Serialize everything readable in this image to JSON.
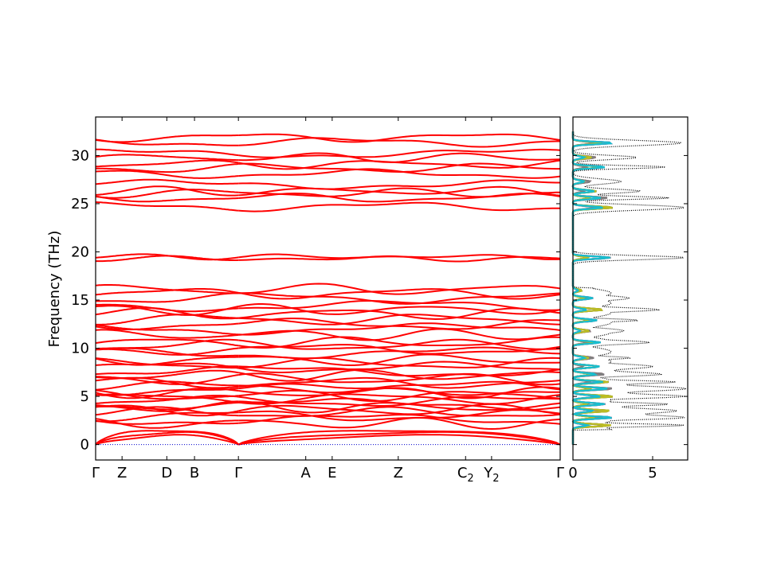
{
  "chart_data": [
    {
      "type": "line",
      "title": "",
      "xlabel": "",
      "ylabel": "Frequency (THz)",
      "ylim": [
        -1.6,
        34
      ],
      "yticks": [
        0,
        5,
        10,
        15,
        20,
        25,
        30
      ],
      "xlim": [
        0,
        10.9
      ],
      "segment_break": 3.35,
      "high_symmetry_points": [
        {
          "label": "Γ",
          "sub": "",
          "x": 0.0
        },
        {
          "label": "Z",
          "sub": "",
          "x": 0.62
        },
        {
          "label": "D",
          "sub": "",
          "x": 1.67
        },
        {
          "label": "B",
          "sub": "",
          "x": 2.32
        },
        {
          "label": "Γ",
          "sub": "",
          "x": 3.35
        },
        {
          "label": "A",
          "sub": "",
          "x": 4.93
        },
        {
          "label": "E",
          "sub": "",
          "x": 5.55
        },
        {
          "label": "Z",
          "sub": "",
          "x": 7.1
        },
        {
          "label": "C",
          "sub": "2",
          "x": 8.68
        },
        {
          "label": "Y",
          "sub": "2",
          "x": 9.29
        },
        {
          "label": "Γ",
          "sub": "",
          "x": 10.9
        }
      ],
      "band_color": "#ff0000",
      "zero_line_color": "#0000cc",
      "optical_band_groups": [
        {
          "range": "high",
          "levels": [
            24.7,
            25.6,
            26.1,
            26.3,
            27.0,
            28.1,
            28.7,
            29.1,
            29.8,
            30.2,
            31.4,
            31.9
          ]
        },
        {
          "range": "mid",
          "levels": [
            19.3,
            19.5
          ]
        },
        {
          "range": "upper-low",
          "levels": [
            9.5,
            9.9,
            10.3,
            10.6,
            11.4,
            12.0,
            12.5,
            13.0,
            13.6,
            14.0,
            14.4,
            15.2,
            15.7,
            16.1
          ]
        },
        {
          "range": "low",
          "levels": [
            2.2,
            2.6,
            3.0,
            3.3,
            3.6,
            3.9,
            4.2,
            4.5,
            4.8,
            5.1,
            5.4,
            5.7,
            6.0,
            6.4,
            6.8,
            7.2,
            7.6,
            8.0,
            8.4,
            8.8
          ]
        }
      ],
      "acoustic_max_thz": [
        2.0,
        1.6,
        1.1
      ]
    },
    {
      "type": "line",
      "title": "",
      "xlabel": "",
      "ylabel": "",
      "xlim": [
        0,
        7.2
      ],
      "ylim": [
        -1.6,
        34
      ],
      "xticks": [
        0,
        5
      ],
      "total_dos_style": "dotted",
      "total_dos_color": "#000000",
      "total_dos_peaks": [
        {
          "f": 2.0,
          "g": 7.0
        },
        {
          "f": 2.8,
          "g": 6.8
        },
        {
          "f": 3.5,
          "g": 6.5
        },
        {
          "f": 4.2,
          "g": 5.8
        },
        {
          "f": 5.0,
          "g": 6.9
        },
        {
          "f": 5.8,
          "g": 7.1
        },
        {
          "f": 6.5,
          "g": 6.2
        },
        {
          "f": 7.3,
          "g": 5.5
        },
        {
          "f": 8.1,
          "g": 5.0
        },
        {
          "f": 9.0,
          "g": 3.6
        },
        {
          "f": 10.6,
          "g": 4.8
        },
        {
          "f": 11.8,
          "g": 3.2
        },
        {
          "f": 12.9,
          "g": 4.1
        },
        {
          "f": 14.0,
          "g": 5.4
        },
        {
          "f": 15.2,
          "g": 3.5
        },
        {
          "f": 16.0,
          "g": 1.5
        },
        {
          "f": 19.4,
          "g": 7.0
        },
        {
          "f": 24.6,
          "g": 7.0
        },
        {
          "f": 25.6,
          "g": 6.0
        },
        {
          "f": 26.3,
          "g": 4.2
        },
        {
          "f": 27.3,
          "g": 3.0
        },
        {
          "f": 28.8,
          "g": 5.8
        },
        {
          "f": 29.8,
          "g": 4.0
        },
        {
          "f": 31.3,
          "g": 6.8
        }
      ],
      "projected_dos_colors": [
        "#1f77b4",
        "#ff7f0e",
        "#2ca02c",
        "#d62728",
        "#9467bd",
        "#8c564b",
        "#e377c2",
        "#7f7f7f",
        "#bcbd22",
        "#17becf"
      ]
    }
  ]
}
